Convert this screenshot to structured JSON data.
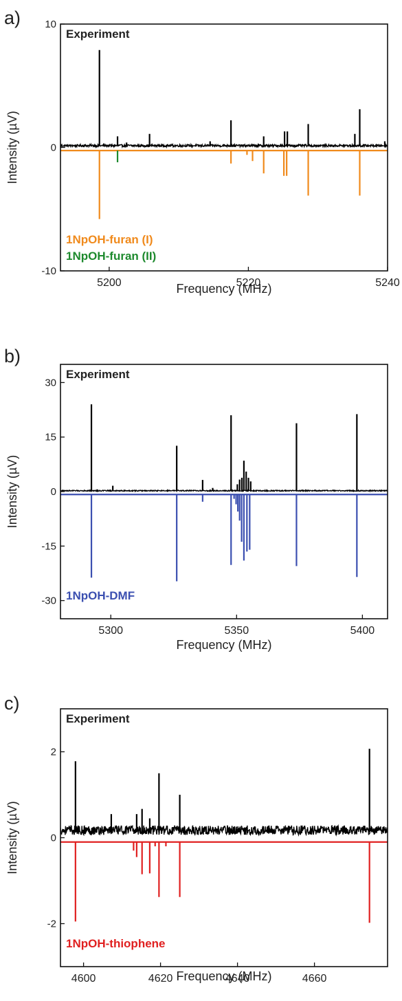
{
  "chart_data": [
    {
      "panel_label": "a)",
      "type": "line",
      "title": "Experiment",
      "xlabel": "Frequency (MHz)",
      "ylabel": "Intensity (µV)",
      "xlim": [
        5193,
        5240
      ],
      "ylim": [
        -10,
        10
      ],
      "xticks": [
        5200,
        5220,
        5240
      ],
      "yticks": [
        10,
        0,
        -10
      ],
      "noise_level": 0.22,
      "baseline_offset": -0.25,
      "series": [
        {
          "name": "Experiment",
          "color": "#000000",
          "peaks": [
            {
              "x": 5198.6,
              "y": 7.9
            },
            {
              "x": 5201.2,
              "y": 0.9
            },
            {
              "x": 5202.5,
              "y": 0.4
            },
            {
              "x": 5205.8,
              "y": 1.1
            },
            {
              "x": 5214.5,
              "y": 0.5
            },
            {
              "x": 5217.5,
              "y": 2.2
            },
            {
              "x": 5222.2,
              "y": 0.9
            },
            {
              "x": 5225.2,
              "y": 1.3
            },
            {
              "x": 5225.6,
              "y": 1.3
            },
            {
              "x": 5228.6,
              "y": 1.9
            },
            {
              "x": 5235.3,
              "y": 1.1
            },
            {
              "x": 5236.0,
              "y": 3.1
            },
            {
              "x": 5239.6,
              "y": 0.5
            }
          ]
        },
        {
          "name": "1NpOH-furan (I)",
          "color": "#f08a1c",
          "peaks": [
            {
              "x": 5198.6,
              "y": -5.8
            },
            {
              "x": 5217.5,
              "y": -1.3
            },
            {
              "x": 5219.8,
              "y": -0.6
            },
            {
              "x": 5220.6,
              "y": -1.1
            },
            {
              "x": 5222.2,
              "y": -2.1
            },
            {
              "x": 5225.1,
              "y": -2.3
            },
            {
              "x": 5225.5,
              "y": -2.3
            },
            {
              "x": 5228.6,
              "y": -3.9
            },
            {
              "x": 5236.0,
              "y": -3.9
            }
          ]
        },
        {
          "name": "1NpOH-furan (II)",
          "color": "#1e8a2e",
          "peaks": [
            {
              "x": 5201.2,
              "y": -1.2
            }
          ]
        }
      ]
    },
    {
      "panel_label": "b)",
      "type": "line",
      "title": "Experiment",
      "xlabel": "Frequency (MHz)",
      "ylabel": "Intensity (µV)",
      "xlim": [
        5280,
        5410
      ],
      "ylim": [
        -35,
        35
      ],
      "xticks": [
        5300,
        5350,
        5400
      ],
      "yticks": [
        30,
        15,
        0,
        -15,
        -30
      ],
      "noise_level": 0.35,
      "baseline_offset": -0.8,
      "series": [
        {
          "name": "Experiment",
          "color": "#000000",
          "peaks": [
            {
              "x": 5292.3,
              "y": 24.0
            },
            {
              "x": 5300.8,
              "y": 1.6
            },
            {
              "x": 5326.2,
              "y": 12.6
            },
            {
              "x": 5336.5,
              "y": 3.2
            },
            {
              "x": 5340.5,
              "y": 1.0
            },
            {
              "x": 5347.8,
              "y": 21.0
            },
            {
              "x": 5350.3,
              "y": 2.0
            },
            {
              "x": 5351.2,
              "y": 3.3
            },
            {
              "x": 5352.1,
              "y": 3.8
            },
            {
              "x": 5352.9,
              "y": 8.5
            },
            {
              "x": 5353.8,
              "y": 5.5
            },
            {
              "x": 5354.7,
              "y": 3.8
            },
            {
              "x": 5355.6,
              "y": 2.8
            },
            {
              "x": 5373.8,
              "y": 18.8
            },
            {
              "x": 5397.8,
              "y": 21.3
            }
          ]
        },
        {
          "name": "1NpOH-DMF",
          "color": "#3b4fb0",
          "peaks": [
            {
              "x": 5292.3,
              "y": -23.7
            },
            {
              "x": 5326.2,
              "y": -24.7
            },
            {
              "x": 5336.5,
              "y": -2.8
            },
            {
              "x": 5347.8,
              "y": -20.2
            },
            {
              "x": 5349.0,
              "y": -2.0
            },
            {
              "x": 5349.8,
              "y": -3.5
            },
            {
              "x": 5350.5,
              "y": -5.5
            },
            {
              "x": 5351.2,
              "y": -8.0
            },
            {
              "x": 5352.0,
              "y": -13.8
            },
            {
              "x": 5352.9,
              "y": -19.0
            },
            {
              "x": 5354.1,
              "y": -16.5
            },
            {
              "x": 5355.2,
              "y": -16.0
            },
            {
              "x": 5373.8,
              "y": -20.5
            },
            {
              "x": 5397.8,
              "y": -23.5
            }
          ]
        }
      ]
    },
    {
      "panel_label": "c)",
      "type": "line",
      "title": "Experiment",
      "xlabel": "Frequency (MHz)",
      "ylabel": "Intensity (µV)",
      "xlim": [
        4594,
        4679
      ],
      "ylim": [
        -3,
        3
      ],
      "xticks": [
        4600,
        4620,
        4640,
        4660
      ],
      "yticks": [
        2,
        0,
        -2
      ],
      "noise_level": 0.26,
      "baseline_offset": -0.1,
      "series": [
        {
          "name": "Experiment",
          "color": "#000000",
          "peaks": [
            {
              "x": 4597.9,
              "y": 1.78
            },
            {
              "x": 4607.2,
              "y": 0.55
            },
            {
              "x": 4613.8,
              "y": 0.55
            },
            {
              "x": 4615.2,
              "y": 0.67
            },
            {
              "x": 4617.2,
              "y": 0.45
            },
            {
              "x": 4619.6,
              "y": 1.5
            },
            {
              "x": 4625.0,
              "y": 1.0
            },
            {
              "x": 4674.3,
              "y": 2.07
            }
          ]
        },
        {
          "name": "1NpOH-thiophene",
          "color": "#e02020",
          "peaks": [
            {
              "x": 4597.9,
              "y": -1.95
            },
            {
              "x": 4613.0,
              "y": -0.3
            },
            {
              "x": 4613.8,
              "y": -0.45
            },
            {
              "x": 4615.2,
              "y": -0.85
            },
            {
              "x": 4617.2,
              "y": -0.83
            },
            {
              "x": 4618.6,
              "y": -0.2
            },
            {
              "x": 4619.6,
              "y": -1.38
            },
            {
              "x": 4621.4,
              "y": -0.2
            },
            {
              "x": 4625.0,
              "y": -1.38
            },
            {
              "x": 4674.3,
              "y": -1.98
            }
          ]
        }
      ]
    }
  ]
}
